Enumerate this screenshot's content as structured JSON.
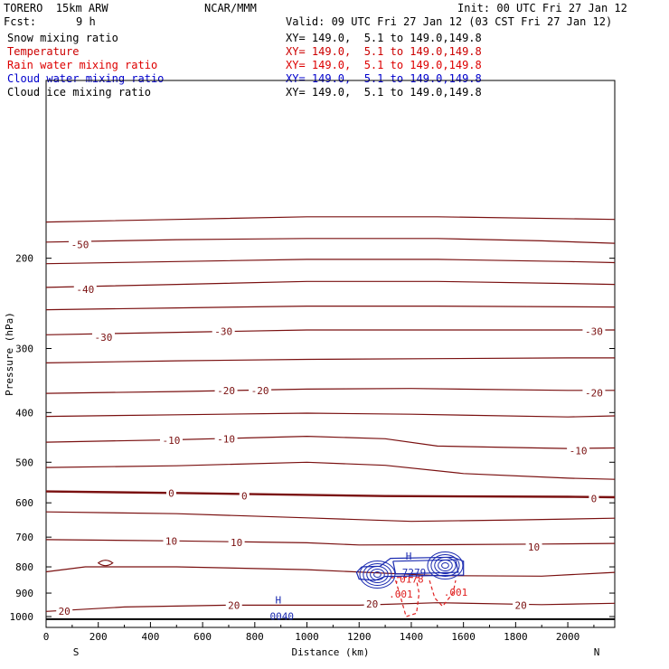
{
  "header": {
    "model": "TORERO  15km ARW",
    "org": "NCAR/MMM",
    "init": "Init: 00 UTC Fri 27 Jan 12",
    "fcst_label": "Fcst:",
    "fcst_value": "9 h",
    "valid": "Valid: 09 UTC Fri 27 Jan 12 (03 CST Fri 27 Jan 12)"
  },
  "fields": [
    {
      "name": "Snow mixing ratio",
      "xy": "XY= 149.0,  5.1 to 149.0,149.8",
      "color": "#000000"
    },
    {
      "name": "Temperature",
      "xy": "XY= 149.0,  5.1 to 149.0,149.8",
      "color": "#cc0000"
    },
    {
      "name": "Rain water mixing ratio",
      "xy": "XY= 149.0,  5.1 to 149.0,149.8",
      "color": "#dd0000"
    },
    {
      "name": "Cloud water mixing ratio",
      "xy": "XY= 149.0,  5.1 to 149.0,149.8",
      "color": "#0000cc"
    },
    {
      "name": "Cloud ice mixing ratio",
      "xy": "XY= 149.0,  5.1 to 149.0,149.8",
      "color": "#000000"
    }
  ],
  "colors": {
    "temperature": "#7a1010",
    "cloud_water": "#1a2ab0",
    "rain": "#e02020",
    "axis": "#000000"
  },
  "chart_data": {
    "type": "contour",
    "xlabel": "Distance (km)",
    "ylabel": "Pressure (hPa)",
    "xlim": [
      0,
      2180
    ],
    "ylim": [
      1050,
      90
    ],
    "y_scale": "log",
    "x_ticks": [
      0,
      200,
      400,
      600,
      800,
      1000,
      1200,
      1400,
      1600,
      1800,
      2000
    ],
    "y_ticks": [
      200,
      300,
      400,
      500,
      600,
      700,
      800,
      900,
      1000
    ],
    "x_end_labels": {
      "left": "S",
      "right": "N"
    },
    "temperature_contours": [
      {
        "level": -55,
        "points": [
          [
            0,
            170
          ],
          [
            500,
            168
          ],
          [
            1000,
            166
          ],
          [
            1500,
            166
          ],
          [
            2180,
            168
          ]
        ]
      },
      {
        "level": -50,
        "points": [
          [
            0,
            186
          ],
          [
            500,
            184
          ],
          [
            1000,
            183
          ],
          [
            1500,
            183
          ],
          [
            1900,
            185
          ],
          [
            2180,
            187
          ]
        ]
      },
      {
        "level": -45,
        "points": [
          [
            0,
            205
          ],
          [
            500,
            203
          ],
          [
            1000,
            201
          ],
          [
            1500,
            201
          ],
          [
            2000,
            203
          ],
          [
            2180,
            204
          ]
        ]
      },
      {
        "level": -40,
        "points": [
          [
            0,
            228
          ],
          [
            500,
            225
          ],
          [
            1000,
            222
          ],
          [
            1500,
            222
          ],
          [
            2000,
            224
          ],
          [
            2180,
            225
          ]
        ]
      },
      {
        "level": -35,
        "points": [
          [
            0,
            252
          ],
          [
            500,
            250
          ],
          [
            1000,
            248
          ],
          [
            1500,
            248
          ],
          [
            2180,
            249
          ]
        ]
      },
      {
        "level": -30,
        "points": [
          [
            0,
            282
          ],
          [
            500,
            279
          ],
          [
            1000,
            276
          ],
          [
            1500,
            276
          ],
          [
            2000,
            276
          ],
          [
            2180,
            276
          ]
        ]
      },
      {
        "level": -25,
        "points": [
          [
            0,
            320
          ],
          [
            500,
            317
          ],
          [
            1000,
            315
          ],
          [
            1500,
            314
          ],
          [
            2000,
            313
          ],
          [
            2180,
            313
          ]
        ]
      },
      {
        "level": -20,
        "points": [
          [
            0,
            367
          ],
          [
            500,
            364
          ],
          [
            1000,
            360
          ],
          [
            1400,
            359
          ],
          [
            2000,
            362
          ],
          [
            2180,
            362
          ]
        ]
      },
      {
        "level": -15,
        "points": [
          [
            0,
            407
          ],
          [
            500,
            404
          ],
          [
            1000,
            401
          ],
          [
            1400,
            403
          ],
          [
            2000,
            408
          ],
          [
            2180,
            406
          ]
        ]
      },
      {
        "level": -10,
        "points": [
          [
            0,
            457
          ],
          [
            500,
            452
          ],
          [
            1000,
            445
          ],
          [
            1300,
            450
          ],
          [
            1500,
            465
          ],
          [
            2000,
            470
          ],
          [
            2180,
            469
          ]
        ]
      },
      {
        "level": -5,
        "points": [
          [
            0,
            512
          ],
          [
            500,
            508
          ],
          [
            1000,
            500
          ],
          [
            1300,
            507
          ],
          [
            1600,
            526
          ],
          [
            2000,
            537
          ],
          [
            2180,
            540
          ]
        ]
      },
      {
        "level": 0,
        "points": [
          [
            0,
            570
          ],
          [
            500,
            574
          ],
          [
            1000,
            579
          ],
          [
            1300,
            582
          ],
          [
            1600,
            583
          ],
          [
            2000,
            584
          ],
          [
            2180,
            585
          ]
        ]
      },
      {
        "level": 5,
        "points": [
          [
            0,
            625
          ],
          [
            500,
            630
          ],
          [
            1000,
            642
          ],
          [
            1400,
            652
          ],
          [
            1800,
            648
          ],
          [
            2180,
            643
          ]
        ]
      },
      {
        "level": 10,
        "points": [
          [
            0,
            708
          ],
          [
            500,
            712
          ],
          [
            1000,
            718
          ],
          [
            1200,
            725
          ],
          [
            1500,
            724
          ],
          [
            1900,
            722
          ],
          [
            2180,
            720
          ]
        ]
      },
      {
        "level": 15,
        "points": [
          [
            0,
            818
          ],
          [
            150,
            800
          ],
          [
            500,
            800
          ],
          [
            1000,
            810
          ],
          [
            1500,
            832
          ],
          [
            1900,
            834
          ],
          [
            2180,
            820
          ]
        ]
      },
      {
        "level": 20,
        "points": [
          [
            0,
            977
          ],
          [
            300,
            958
          ],
          [
            700,
            950
          ],
          [
            1200,
            950
          ],
          [
            1500,
            940
          ],
          [
            1900,
            948
          ],
          [
            2180,
            942
          ]
        ]
      }
    ],
    "temperature_labels": [
      {
        "x": 130,
        "p": 188,
        "text": "-50"
      },
      {
        "x": 150,
        "p": 230,
        "text": "-40"
      },
      {
        "x": 220,
        "p": 285,
        "text": "-30"
      },
      {
        "x": 680,
        "p": 278,
        "text": "-30"
      },
      {
        "x": 2100,
        "p": 278,
        "text": "-30"
      },
      {
        "x": 690,
        "p": 362,
        "text": "-20"
      },
      {
        "x": 820,
        "p": 362,
        "text": "-20"
      },
      {
        "x": 2100,
        "p": 366,
        "text": "-20"
      },
      {
        "x": 480,
        "p": 453,
        "text": "-10"
      },
      {
        "x": 690,
        "p": 450,
        "text": "-10"
      },
      {
        "x": 2040,
        "p": 475,
        "text": "-10"
      },
      {
        "x": 480,
        "p": 575,
        "text": "0"
      },
      {
        "x": 760,
        "p": 582,
        "text": "0"
      },
      {
        "x": 2100,
        "p": 589,
        "text": "0"
      },
      {
        "x": 480,
        "p": 713,
        "text": "10"
      },
      {
        "x": 730,
        "p": 717,
        "text": "10"
      },
      {
        "x": 1870,
        "p": 732,
        "text": "10"
      },
      {
        "x": 70,
        "p": 976,
        "text": "20"
      },
      {
        "x": 720,
        "p": 951,
        "text": "20"
      },
      {
        "x": 1250,
        "p": 945,
        "text": "20"
      },
      {
        "x": 1820,
        "p": 950,
        "text": "20"
      }
    ],
    "cloud_water": {
      "max_label": {
        "x": 1390,
        "p": 793,
        "h": "H",
        "value": "7279"
      },
      "min_label": {
        "x": 890,
        "p": 967,
        "h": "H",
        "value": "0040"
      },
      "cells": [
        [
          1270,
          828
        ],
        [
          1530,
          795
        ]
      ]
    },
    "rain_water": {
      "labels": [
        {
          "x": 1390,
          "p": 845,
          "text": ".0178"
        },
        {
          "x": 1360,
          "p": 903,
          "text": ".001"
        },
        {
          "x": 1570,
          "p": 897,
          "text": ".001"
        }
      ]
    }
  }
}
